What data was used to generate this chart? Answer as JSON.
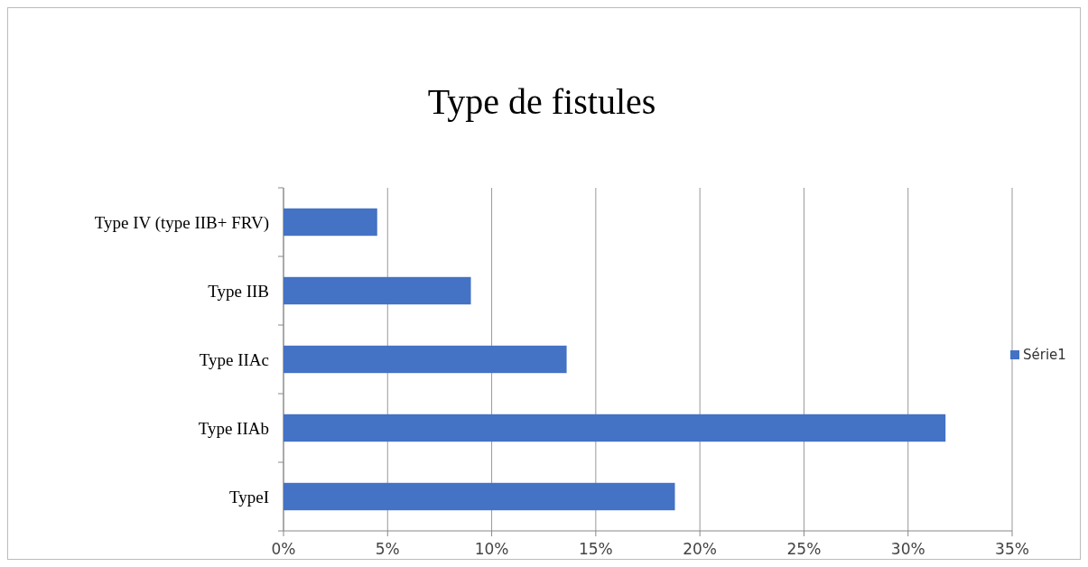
{
  "chart_data": {
    "type": "bar",
    "orientation": "horizontal",
    "title": "Type de fistules",
    "categories": [
      "Type IV (type IIB+ FRV)",
      "Type IIB",
      "Type IIAc",
      "Type IIAb",
      "TypeI"
    ],
    "series": [
      {
        "name": "Série1",
        "color": "#4472c4",
        "values": [
          4.5,
          9.0,
          13.6,
          31.8,
          18.8
        ]
      }
    ],
    "xlim": [
      0,
      35
    ],
    "xticks": [
      {
        "value": 0,
        "label": "0%"
      },
      {
        "value": 5,
        "label": "5%"
      },
      {
        "value": 10,
        "label": "10%"
      },
      {
        "value": 15,
        "label": "15%"
      },
      {
        "value": 20,
        "label": "20%"
      },
      {
        "value": 25,
        "label": "25%"
      },
      {
        "value": 30,
        "label": "30%"
      },
      {
        "value": 35,
        "label": "35%"
      }
    ],
    "grid": "x",
    "legend": "right"
  }
}
